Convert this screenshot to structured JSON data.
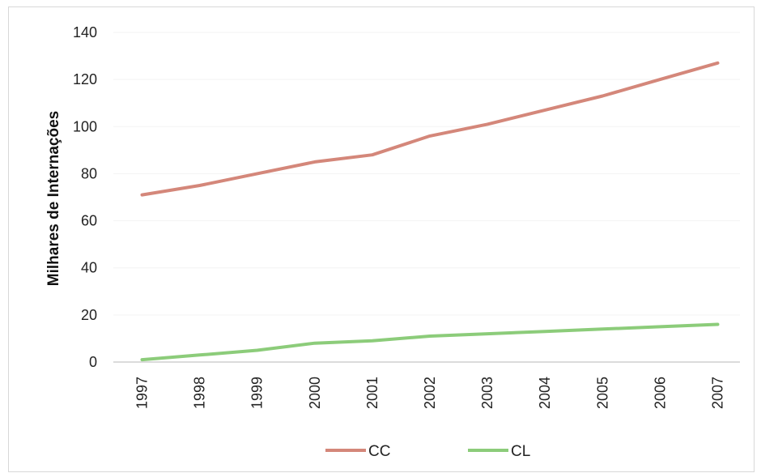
{
  "chart_data": {
    "type": "line",
    "title": "",
    "xlabel": "",
    "ylabel": "Milhares de Internações",
    "categories": [
      "1997",
      "1998",
      "1999",
      "2000",
      "2001",
      "2002",
      "2003",
      "2004",
      "2005",
      "2006",
      "2007"
    ],
    "ylim": [
      0,
      140
    ],
    "yticks": [
      0,
      20,
      40,
      60,
      80,
      100,
      120,
      140
    ],
    "grid": true,
    "legend_position": "bottom",
    "series": [
      {
        "name": "CC",
        "color": "#d4877a",
        "values": [
          71,
          75,
          80,
          85,
          88,
          96,
          101,
          107,
          113,
          120,
          127
        ]
      },
      {
        "name": "CL",
        "color": "#8ccc7a",
        "values": [
          1,
          3,
          5,
          8,
          9,
          11,
          12,
          13,
          14,
          15,
          16
        ]
      }
    ]
  }
}
